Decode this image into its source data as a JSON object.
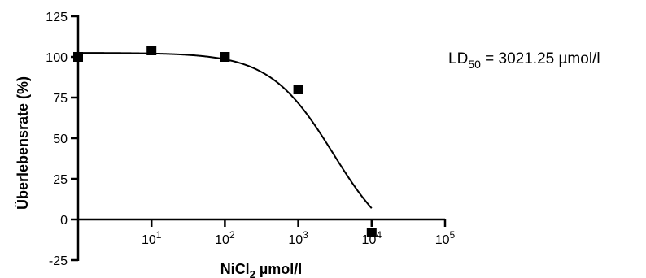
{
  "chart_data": {
    "type": "scatter",
    "x_scale": "log",
    "xlabel": {
      "base": "NiCl",
      "sub": "2",
      "rest": " µmol/l"
    },
    "ylabel": "Überlebensrate (%)",
    "ylim": [
      -25,
      125
    ],
    "xlim": [
      1,
      100000
    ],
    "y_ticks": [
      "-25",
      "0",
      "25",
      "50",
      "75",
      "100",
      "125"
    ],
    "x_ticks": [
      {
        "value": 10,
        "base": "10",
        "exp": "1"
      },
      {
        "value": 100,
        "base": "10",
        "exp": "2"
      },
      {
        "value": 1000,
        "base": "10",
        "exp": "3"
      },
      {
        "value": 10000,
        "base": "10",
        "exp": "4"
      },
      {
        "value": 100000,
        "base": "10",
        "exp": "5"
      }
    ],
    "series": [
      {
        "x": [
          1,
          10,
          100,
          1000,
          10000
        ],
        "y": [
          100,
          104,
          100,
          80,
          -8
        ]
      }
    ],
    "fit_curve": {
      "top": 102.5,
      "bottom": -22,
      "log_ec50": 3.48,
      "hill": 1.0
    },
    "annotation": {
      "base": "LD",
      "sub": "50",
      "rest": " = 3021.25 µmol/l"
    },
    "grid": false,
    "legend": "none"
  }
}
